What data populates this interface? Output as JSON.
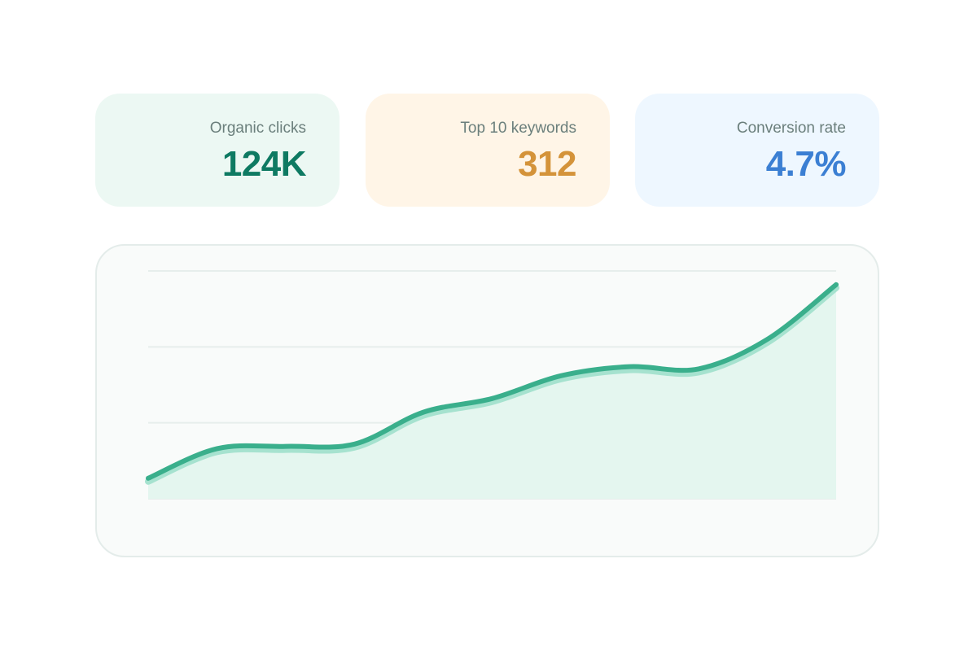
{
  "stats": {
    "clicks": {
      "label": "Organic clicks",
      "value": "124K",
      "color": "#0e7a62"
    },
    "keywords": {
      "label": "Top 10 keywords",
      "value": "312",
      "color": "#d4933a"
    },
    "conversion": {
      "label": "Conversion rate",
      "value": "4.7%",
      "color": "#3b7fd3"
    }
  },
  "chart_data": {
    "type": "area",
    "x": [
      0,
      1,
      2,
      3,
      4,
      5,
      6,
      7,
      8,
      9,
      10
    ],
    "values": [
      9,
      22,
      23,
      24,
      38,
      44,
      54,
      58,
      57,
      70,
      94
    ],
    "ylim": [
      0,
      100
    ],
    "grid": true,
    "gridlines": 4,
    "line_color": "#3aaf8c",
    "fill_color": "#e4f6ef",
    "title": "",
    "xlabel": "",
    "ylabel": ""
  }
}
